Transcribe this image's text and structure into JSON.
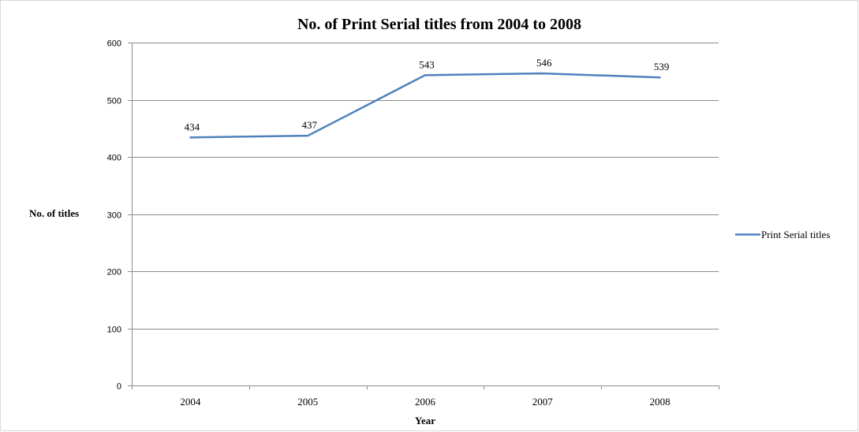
{
  "chart_data": {
    "type": "line",
    "title": "No. of Print Serial titles from 2004 to 2008",
    "xlabel": "Year",
    "ylabel": "No. of titles",
    "categories": [
      "2004",
      "2005",
      "2006",
      "2007",
      "2008"
    ],
    "series": [
      {
        "name": "Print Serial titles",
        "values": [
          434,
          437,
          543,
          546,
          539
        ],
        "color": "#4F81BD"
      }
    ],
    "data_labels": [
      "434",
      "437",
      "543",
      "546",
      "539"
    ],
    "ylim": [
      0,
      600
    ],
    "yticks": [
      "0",
      "100",
      "200",
      "300",
      "400",
      "500",
      "600"
    ],
    "grid": true,
    "legend_position": "right"
  }
}
